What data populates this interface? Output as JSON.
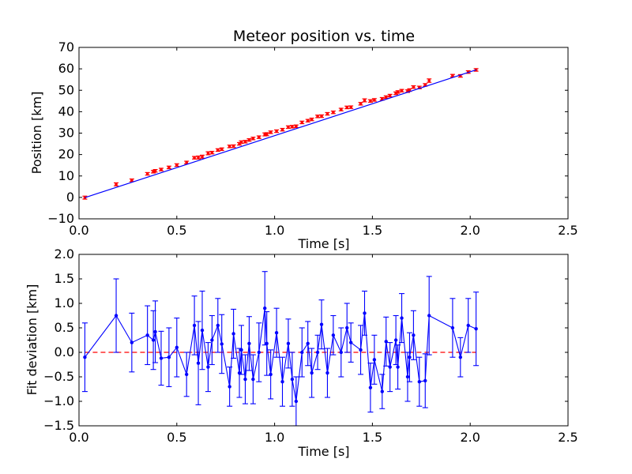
{
  "chart_data": [
    {
      "type": "scatter",
      "title": "Meteor position vs. time",
      "xlabel": "Time [s]",
      "ylabel": "Position [km]",
      "xlim": [
        0.0,
        2.5
      ],
      "ylim": [
        -10,
        70
      ],
      "xticks": [
        0.0,
        0.5,
        1.0,
        1.5,
        2.0,
        2.5
      ],
      "xtick_labels": [
        "0.0",
        "0.5",
        "1.0",
        "1.5",
        "2.0",
        "2.5"
      ],
      "yticks": [
        -10,
        0,
        10,
        20,
        30,
        40,
        50,
        60,
        70
      ],
      "ytick_labels": [
        "−10",
        "0",
        "10",
        "20",
        "30",
        "40",
        "50",
        "60",
        "70"
      ],
      "grid": false,
      "series": [
        {
          "kind": "errorbar",
          "color": "#ff0000",
          "x": [
            0.03,
            0.19,
            0.27,
            0.35,
            0.38,
            0.39,
            0.42,
            0.46,
            0.5,
            0.55,
            0.59,
            0.61,
            0.63,
            0.66,
            0.68,
            0.71,
            0.73,
            0.77,
            0.79,
            0.82,
            0.83,
            0.85,
            0.87,
            0.89,
            0.92,
            0.95,
            0.96,
            0.98,
            1.01,
            1.04,
            1.07,
            1.09,
            1.11,
            1.14,
            1.17,
            1.19,
            1.22,
            1.24,
            1.27,
            1.3,
            1.34,
            1.37,
            1.39,
            1.44,
            1.46,
            1.49,
            1.51,
            1.55,
            1.57,
            1.59,
            1.62,
            1.63,
            1.65,
            1.68,
            1.69,
            1.71,
            1.74,
            1.77,
            1.79,
            1.91,
            1.95,
            1.99,
            2.03
          ],
          "y": [
            -0.1,
            6.1,
            8.0,
            11.0,
            12.0,
            12.4,
            13.0,
            14.0,
            15.1,
            16.3,
            18.5,
            18.6,
            19.0,
            20.6,
            20.9,
            22.1,
            22.5,
            23.8,
            23.9,
            25.0,
            25.8,
            26.0,
            26.8,
            27.5,
            28.1,
            29.4,
            29.5,
            30.4,
            30.9,
            31.6,
            32.8,
            33.0,
            33.2,
            35.0,
            35.8,
            36.4,
            37.8,
            37.9,
            39.0,
            39.7,
            41.0,
            42.0,
            42.1,
            43.7,
            45.3,
            45.0,
            45.5,
            46.0,
            46.8,
            47.5,
            48.6,
            49.2,
            49.8,
            49.6,
            50.1,
            51.5,
            51.3,
            52.5,
            54.5,
            56.8,
            56.7,
            58.5,
            59.5
          ],
          "yerr": [
            0.7,
            0.7,
            0.6,
            0.6,
            0.6,
            0.6,
            0.6,
            0.6,
            0.6,
            0.6,
            0.6,
            0.7,
            0.7,
            0.7,
            0.6,
            0.6,
            0.6,
            0.6,
            0.6,
            0.6,
            0.6,
            0.6,
            0.6,
            0.6,
            0.6,
            0.7,
            0.7,
            0.6,
            0.6,
            0.6,
            0.6,
            0.6,
            0.6,
            0.6,
            0.6,
            0.6,
            0.6,
            0.6,
            0.6,
            0.6,
            0.6,
            0.6,
            0.6,
            0.6,
            0.7,
            0.6,
            0.6,
            0.6,
            0.6,
            0.6,
            0.6,
            0.6,
            0.6,
            0.6,
            0.6,
            0.6,
            0.6,
            0.6,
            0.8,
            0.6,
            0.6,
            0.6,
            0.6
          ]
        },
        {
          "kind": "line",
          "color": "#0000ff",
          "x": [
            0.03,
            2.03
          ],
          "y": [
            -0.1,
            59.5
          ]
        }
      ]
    },
    {
      "type": "line",
      "title": "",
      "xlabel": "Time [s]",
      "ylabel": "Fit deviation [km]",
      "xlim": [
        0.0,
        2.5
      ],
      "ylim": [
        -1.5,
        2.0
      ],
      "xticks": [
        0.0,
        0.5,
        1.0,
        1.5,
        2.0,
        2.5
      ],
      "xtick_labels": [
        "0.0",
        "0.5",
        "1.0",
        "1.5",
        "2.0",
        "2.5"
      ],
      "yticks": [
        -1.5,
        -1.0,
        -0.5,
        0.0,
        0.5,
        1.0,
        1.5,
        2.0
      ],
      "ytick_labels": [
        "−1.5",
        "−1.0",
        "−0.5",
        "0.0",
        "0.5",
        "1.0",
        "1.5",
        "2.0"
      ],
      "grid": false,
      "reference_line": {
        "y": 0.0,
        "color": "#ff0000",
        "style": "dashed"
      },
      "series": [
        {
          "kind": "errorbar-line",
          "color": "#0000ff",
          "x": [
            0.03,
            0.19,
            0.27,
            0.35,
            0.38,
            0.39,
            0.42,
            0.46,
            0.5,
            0.55,
            0.59,
            0.61,
            0.63,
            0.66,
            0.68,
            0.71,
            0.73,
            0.77,
            0.79,
            0.82,
            0.83,
            0.85,
            0.87,
            0.89,
            0.92,
            0.95,
            0.96,
            0.98,
            1.01,
            1.04,
            1.07,
            1.09,
            1.11,
            1.14,
            1.17,
            1.19,
            1.22,
            1.24,
            1.27,
            1.3,
            1.34,
            1.37,
            1.39,
            1.44,
            1.46,
            1.49,
            1.51,
            1.55,
            1.57,
            1.59,
            1.62,
            1.63,
            1.65,
            1.68,
            1.69,
            1.71,
            1.74,
            1.77,
            1.79,
            1.91,
            1.95,
            1.99,
            2.03
          ],
          "y": [
            -0.1,
            0.75,
            0.2,
            0.35,
            0.25,
            0.42,
            -0.12,
            -0.1,
            0.1,
            -0.45,
            0.55,
            -0.22,
            0.45,
            -0.3,
            0.25,
            0.55,
            0.17,
            -0.7,
            0.38,
            -0.42,
            0.05,
            -0.55,
            0.18,
            -0.55,
            0.0,
            0.9,
            0.18,
            -0.45,
            0.4,
            -0.6,
            0.18,
            -0.55,
            -1.0,
            0.0,
            0.18,
            -0.42,
            0.0,
            0.57,
            -0.42,
            0.35,
            0.0,
            0.5,
            0.2,
            0.05,
            0.8,
            -0.72,
            -0.15,
            -0.8,
            0.22,
            -0.3,
            0.25,
            -0.3,
            0.7,
            -0.5,
            -0.1,
            0.35,
            -0.6,
            -0.58,
            0.75,
            0.5,
            -0.1,
            0.55,
            0.48
          ],
          "yerr": [
            0.7,
            0.75,
            0.6,
            0.6,
            0.6,
            0.63,
            0.55,
            0.6,
            0.6,
            0.45,
            0.6,
            0.85,
            0.8,
            0.5,
            0.5,
            0.55,
            0.6,
            0.4,
            0.5,
            0.5,
            0.5,
            0.5,
            0.55,
            0.5,
            0.6,
            0.75,
            0.65,
            0.5,
            0.5,
            0.5,
            0.5,
            0.55,
            0.5,
            0.5,
            0.45,
            0.5,
            0.35,
            0.5,
            0.5,
            0.4,
            0.5,
            0.5,
            0.4,
            0.5,
            0.45,
            0.5,
            0.5,
            0.35,
            0.5,
            0.5,
            0.5,
            0.45,
            0.5,
            0.5,
            0.5,
            0.5,
            0.5,
            0.55,
            0.8,
            0.6,
            0.4,
            0.55,
            0.75
          ]
        }
      ]
    }
  ]
}
